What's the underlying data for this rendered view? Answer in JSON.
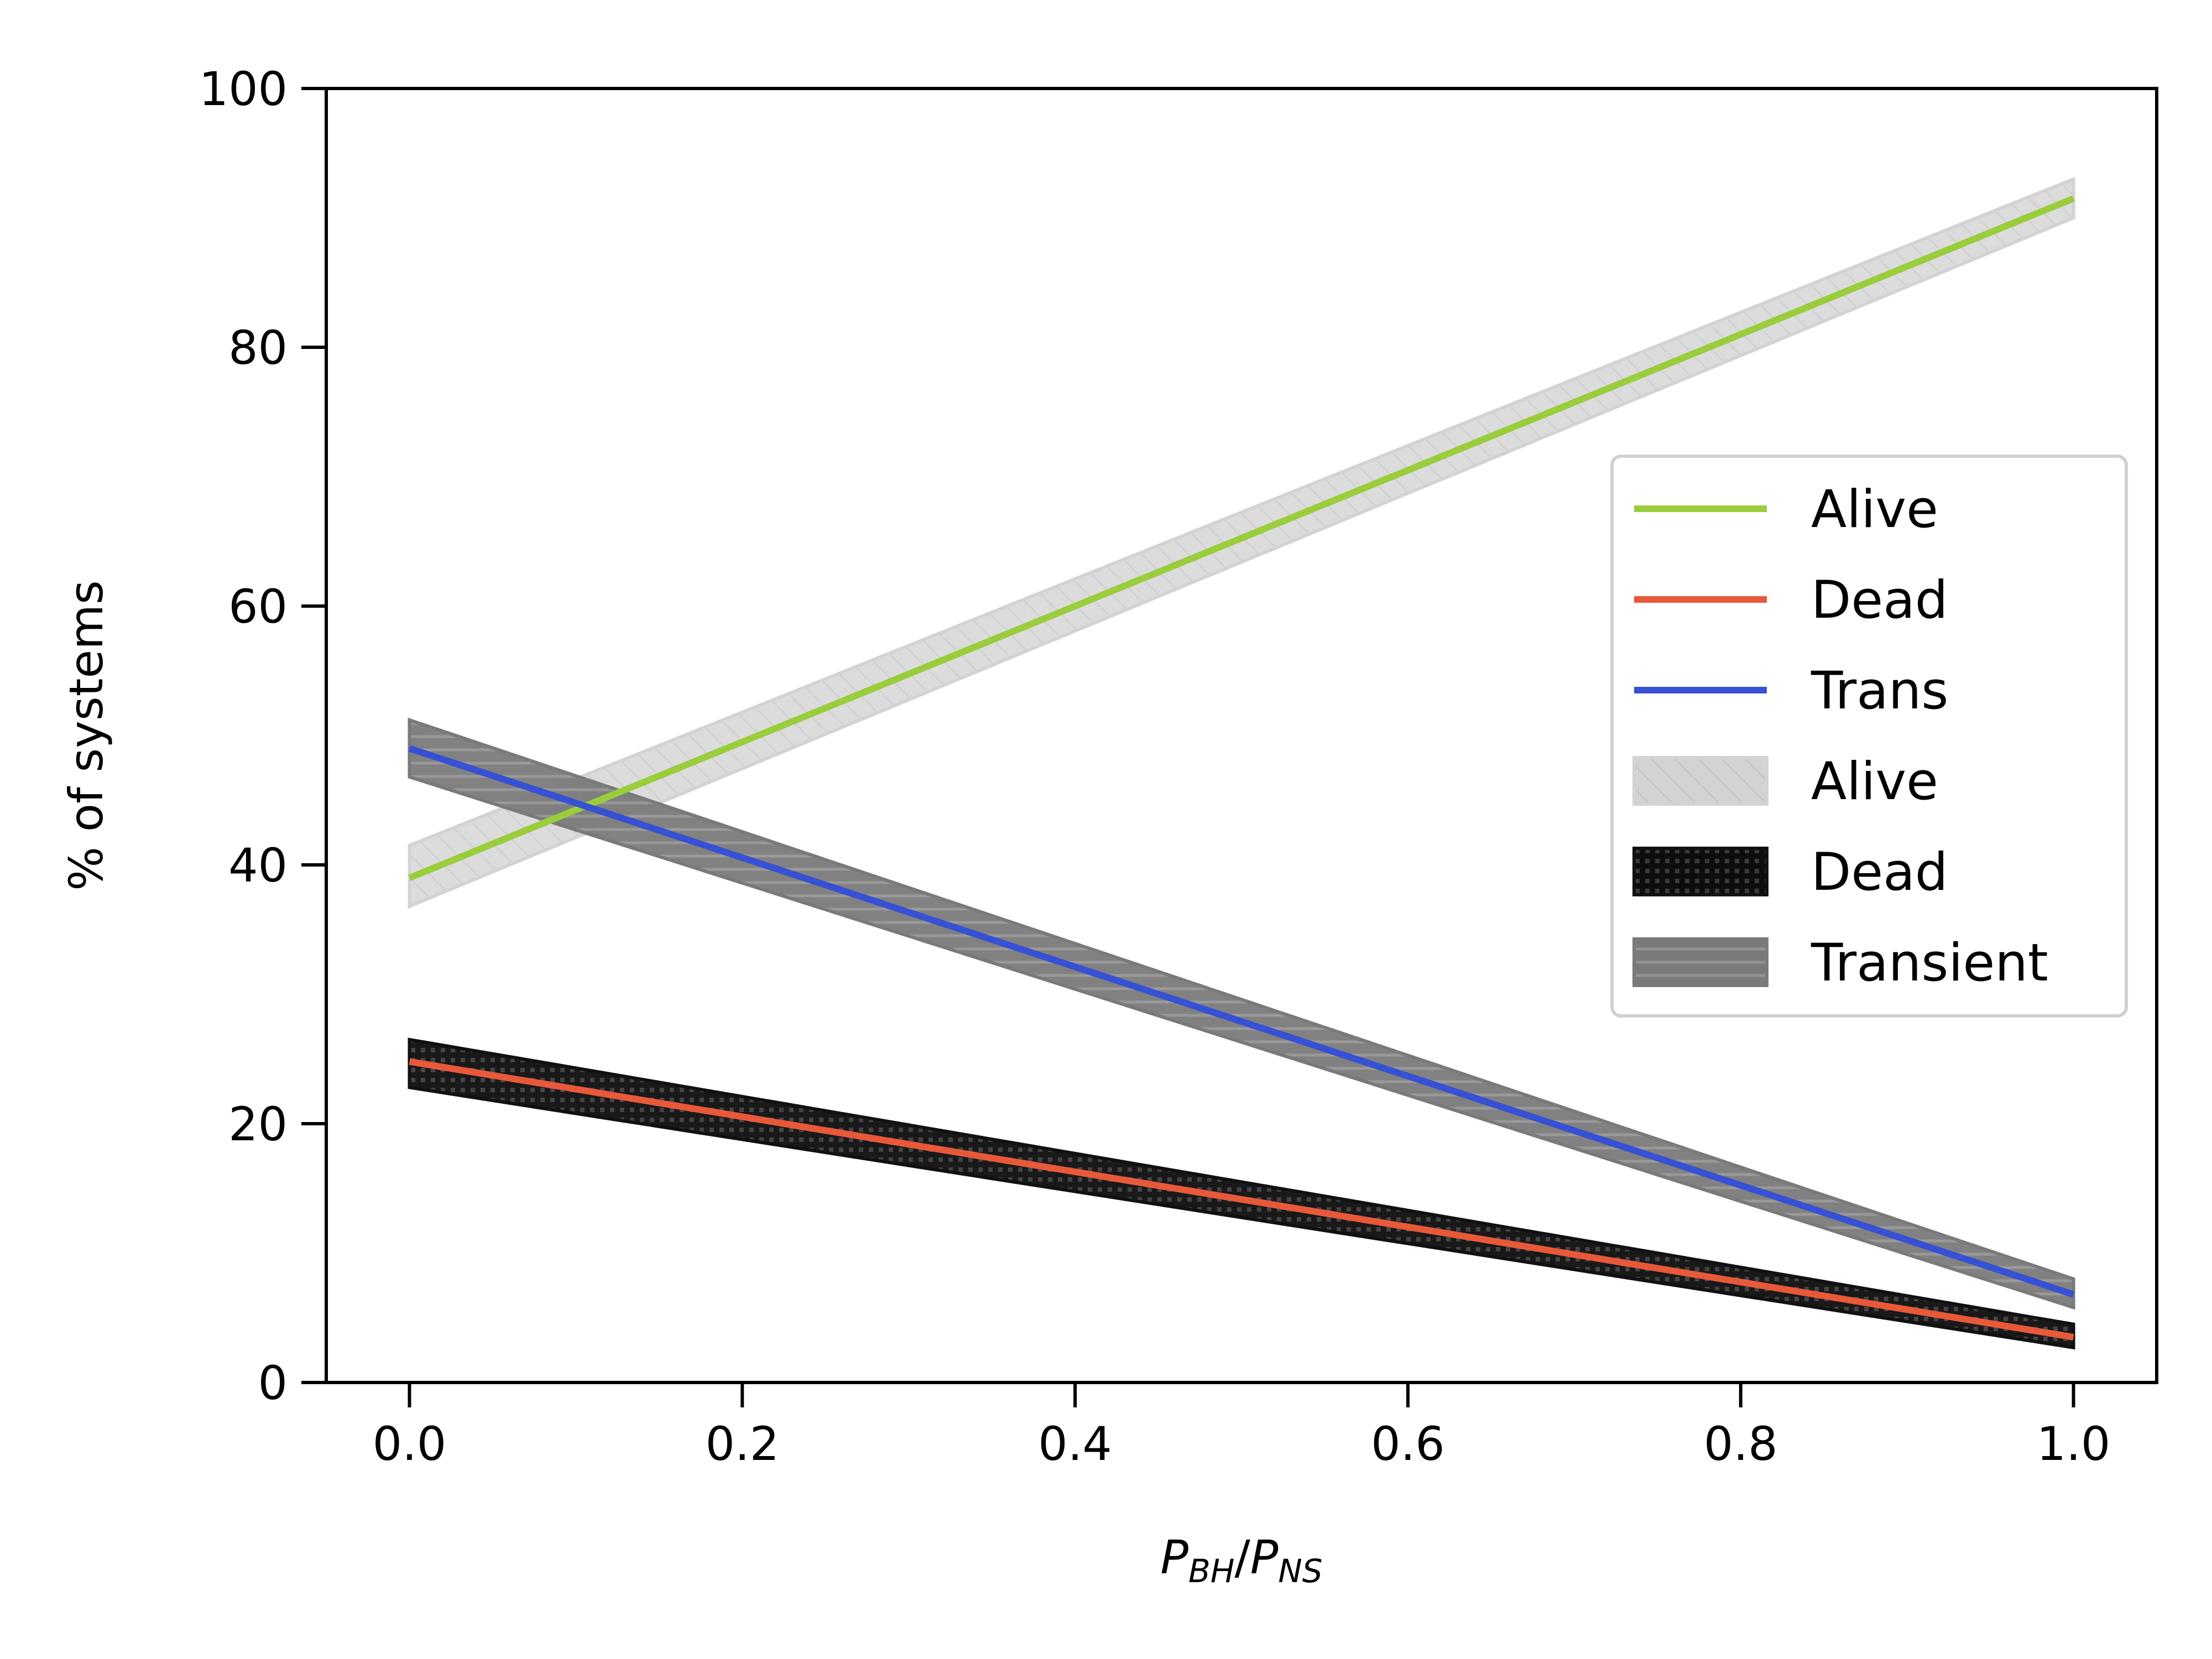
{
  "chart_data": {
    "type": "line",
    "xlabel": {
      "main": "P",
      "sub1": "BH",
      "slash": "/",
      "main2": "P",
      "sub2": "NS"
    },
    "ylabel": "% of systems",
    "xlim": [
      -0.05,
      1.05
    ],
    "ylim": [
      0,
      100
    ],
    "xticks": [
      0.0,
      0.2,
      0.4,
      0.6,
      0.8,
      1.0
    ],
    "xtick_labels": [
      "0.0",
      "0.2",
      "0.4",
      "0.6",
      "0.8",
      "1.0"
    ],
    "yticks": [
      0,
      20,
      40,
      60,
      80,
      100
    ],
    "ytick_labels": [
      "0",
      "20",
      "40",
      "60",
      "80",
      "100"
    ],
    "grid": false,
    "legend_position": "center-right",
    "series": [
      {
        "name": "Alive",
        "kind": "line",
        "color": "#9acd3b",
        "x": [
          0.0,
          1.0
        ],
        "y": [
          39,
          91.5
        ]
      },
      {
        "name": "Dead",
        "kind": "line",
        "color": "#e8593a",
        "x": [
          0.0,
          1.0
        ],
        "y": [
          24.8,
          3.5
        ]
      },
      {
        "name": "Trans",
        "kind": "line",
        "color": "#3651d4",
        "x": [
          0.0,
          1.0
        ],
        "y": [
          49,
          6.8
        ]
      }
    ],
    "bands": [
      {
        "name": "Alive",
        "color": "#d3d3d3",
        "hatch": "diagonal",
        "x": [
          0.0,
          1.0
        ],
        "y_low": [
          36.8,
          90.0
        ],
        "y_high": [
          41.5,
          93.0
        ]
      },
      {
        "name": "Dead",
        "color": "#111111",
        "hatch": "grid",
        "x": [
          0.0,
          1.0
        ],
        "y_low": [
          22.8,
          2.7
        ],
        "y_high": [
          26.5,
          4.5
        ]
      },
      {
        "name": "Transient",
        "color": "#7a7a7a",
        "hatch": "horizontal",
        "x": [
          0.0,
          1.0
        ],
        "y_low": [
          46.8,
          5.8
        ],
        "y_high": [
          51.2,
          8.0
        ]
      }
    ]
  }
}
